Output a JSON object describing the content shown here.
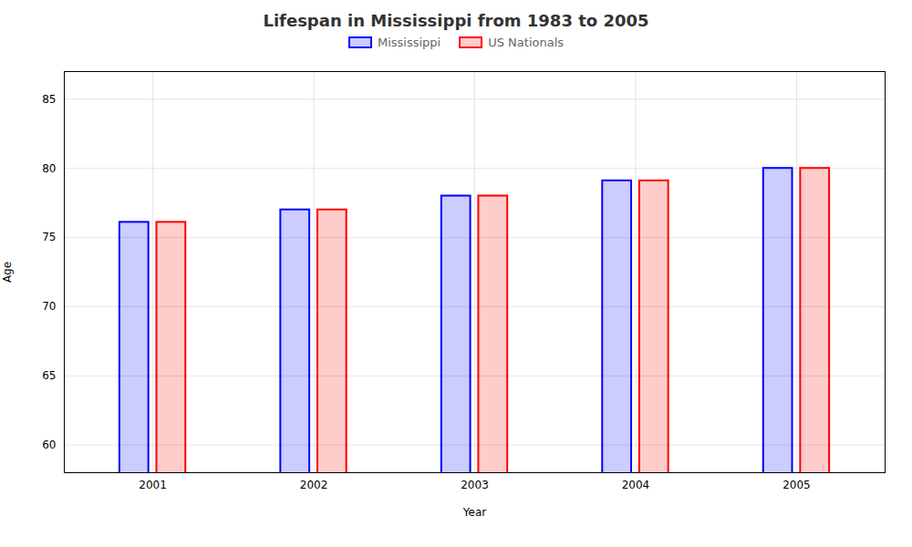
{
  "chart_data": {
    "type": "bar",
    "title": "Lifespan in Mississippi from 1983 to 2005",
    "xlabel": "Year",
    "ylabel": "Age",
    "categories": [
      "2001",
      "2002",
      "2003",
      "2004",
      "2005"
    ],
    "series": [
      {
        "name": "Mississippi",
        "color": "#0000ff",
        "values": [
          76.1,
          77.0,
          78.0,
          79.1,
          80.0
        ]
      },
      {
        "name": "US Nationals",
        "color": "#ff0000",
        "values": [
          76.1,
          77.0,
          78.0,
          79.1,
          80.0
        ]
      }
    ],
    "ylim": [
      58,
      87
    ],
    "yticks": [
      60,
      65,
      70,
      75,
      80,
      85
    ],
    "grid": true,
    "legend": "top"
  }
}
